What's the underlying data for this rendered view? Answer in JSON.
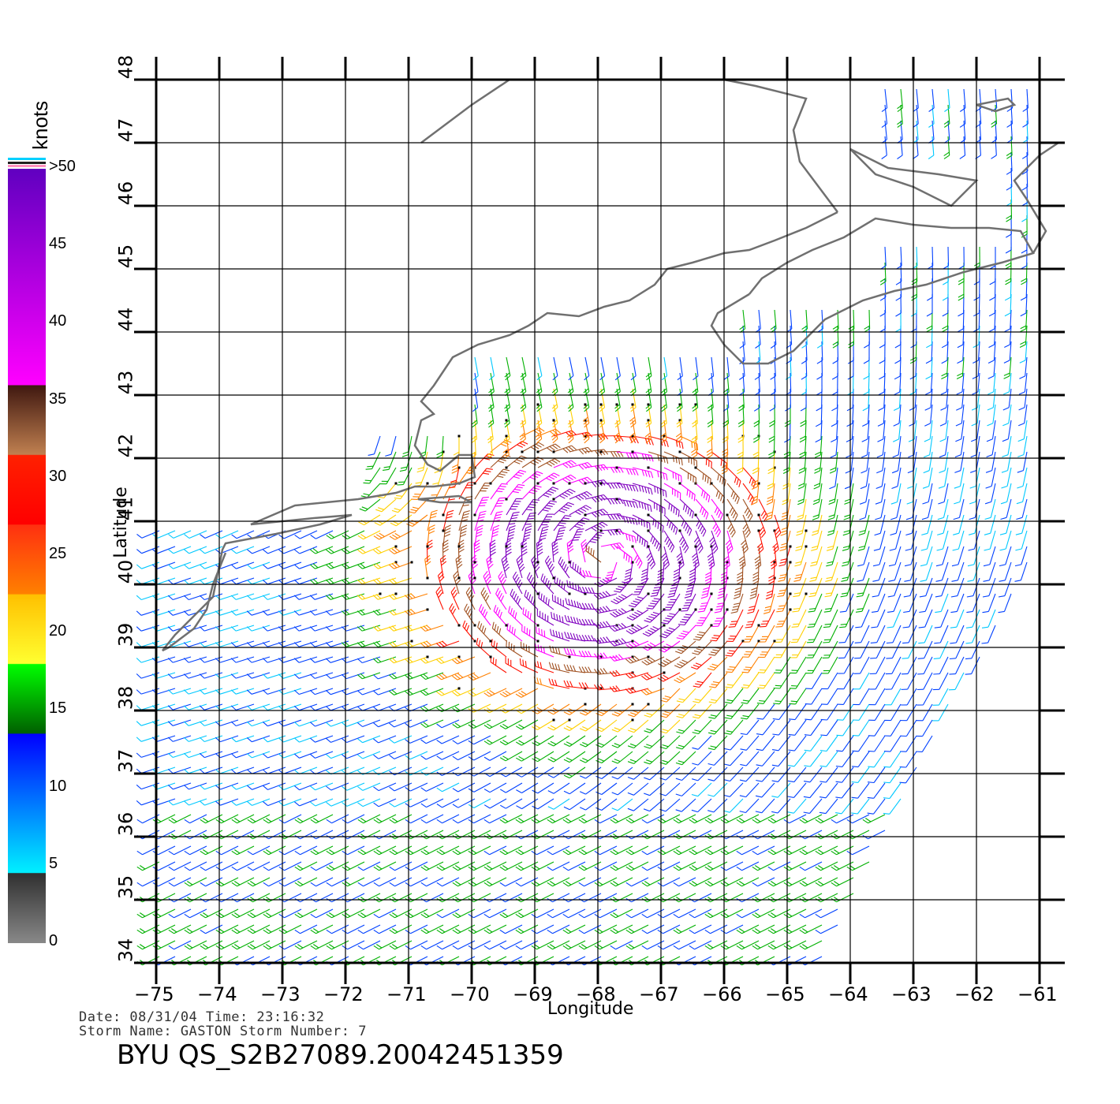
{
  "colorbar": {
    "unit_label": "knots",
    "ticks": [
      "0",
      "5",
      "10",
      "15",
      "20",
      "25",
      "30",
      "35",
      "40",
      "45",
      ">50"
    ],
    "colors": [
      "#808080",
      "#404040",
      "#00e5ff",
      "#0050ff",
      "#0000ff",
      "#008000",
      "#00ff00",
      "#ffff30",
      "#ffc000",
      "#ff7000",
      "#ff2000",
      "#ff0000",
      "#c08050",
      "#402018",
      "#ff00ff",
      "#c000c0",
      "#8000c0",
      "#6000c0"
    ]
  },
  "axes": {
    "x_title": "Longitude",
    "y_title": "Latitude",
    "x_ticks": [
      "−75",
      "−74",
      "−73",
      "−72",
      "−71",
      "−70",
      "−69",
      "−68",
      "−67",
      "−66",
      "−65",
      "−64",
      "−63",
      "−62",
      "−61"
    ],
    "y_ticks": [
      "34",
      "35",
      "36",
      "37",
      "38",
      "39",
      "40",
      "41",
      "42",
      "43",
      "44",
      "45",
      "46",
      "47",
      "48"
    ],
    "lon_range": [
      -75,
      -61
    ],
    "lat_range": [
      34,
      48
    ]
  },
  "meta": {
    "line1": "Date: 08/31/04   Time: 23:16:32",
    "line2": "Storm Name: GASTON   Storm Number: 7",
    "title": "BYU QS_S2B27089.20042451359"
  },
  "storm": {
    "center_lon": -67.9,
    "center_lat": 40.4
  }
}
